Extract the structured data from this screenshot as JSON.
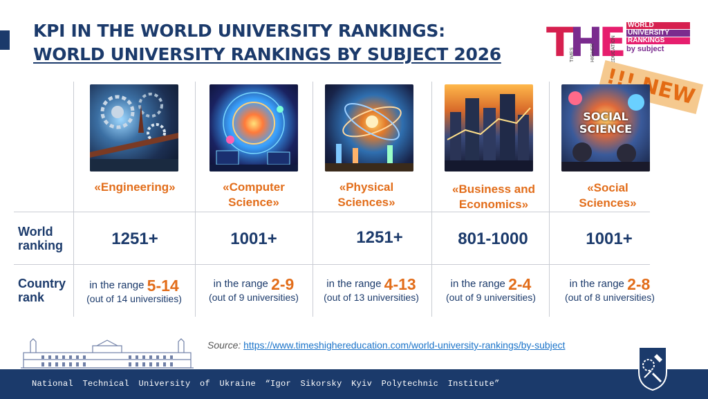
{
  "title": {
    "line1": "KPI IN THE WORLD UNIVERSITY RANKINGS:",
    "line2": "WORLD UNIVERSITY RANKINGS BY SUBJECT 2026"
  },
  "logo": {
    "letters": "THE",
    "vertical_1": "TIMES",
    "vertical_2": "HIGHER",
    "vertical_3": "EDUCATION",
    "line1": "WORLD",
    "line2": "UNIVERSITY",
    "line3": "RANKINGS",
    "line4": "by subject"
  },
  "badge": "!!! NEW",
  "row_headers": {
    "world_line1": "World",
    "world_line2": "ranking",
    "country_line1": "Country",
    "country_line2": "rank"
  },
  "subjects": [
    {
      "name_line1": "«Engineering»",
      "name_line2": "",
      "world_ranking": "1251+",
      "range_prefix": "in the range",
      "range": "5-14",
      "out_of": "(out of 14 universities)"
    },
    {
      "name_line1": "«Computer",
      "name_line2": "Science»",
      "world_ranking": "1001+",
      "range_prefix": "in the range",
      "range": "2-9",
      "out_of": "(out of 9 universities)"
    },
    {
      "name_line1": "«Physical",
      "name_line2": "Sciences»",
      "world_ranking": "1251+",
      "range_prefix": "in the range",
      "range": "4-13",
      "out_of": "(out of 13 universities)"
    },
    {
      "name_line1": "«Business and",
      "name_line2": "Economics»",
      "world_ranking": "801-1000",
      "range_prefix": "in the range",
      "range": "2-4",
      "out_of": "(out of 9 universities)"
    },
    {
      "name_line1": "«Social",
      "name_line2": "Sciences»",
      "world_ranking": "1001+",
      "range_prefix": "in the range",
      "range": "2-8",
      "out_of": "(out of 8 universities)"
    }
  ],
  "image_label_social": "SOCIAL SCIENCE",
  "source": {
    "label": "Source:",
    "url": "https://www.timeshighereducation.com/world-university-rankings/by-subject"
  },
  "footer": "National Technical University of Ukraine “Igor Sikorsky Kyiv Polytechnic Institute”",
  "colors": {
    "navy": "#1b3a6b",
    "orange": "#e26d1a",
    "link": "#1a73c9",
    "the_red": "#d6204f",
    "the_purple": "#7a2b8e"
  }
}
